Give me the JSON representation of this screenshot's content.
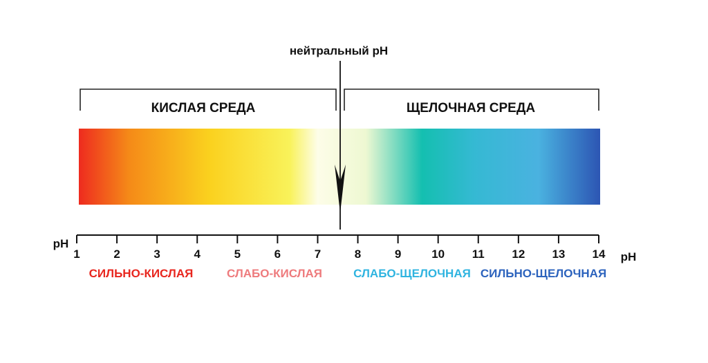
{
  "neutral_label": "нейтральный pH",
  "acid_label": "КИСЛАЯ СРЕДА",
  "alkaline_label": "ЩЕЛОЧНАЯ СРЕДА",
  "axis": {
    "label_left": "pH",
    "label_right": "pH",
    "min": 1,
    "max": 14,
    "ticks": [
      "1",
      "2",
      "3",
      "4",
      "5",
      "6",
      "7",
      "8",
      "9",
      "10",
      "11",
      "12",
      "13",
      "14"
    ],
    "neutral_value": 7
  },
  "zones": [
    {
      "label": "СИЛЬНО-КИСЛАЯ",
      "color": "#e8261e"
    },
    {
      "label": "СЛАБО-КИСЛАЯ",
      "color": "#ee7b7d"
    },
    {
      "label": "СЛАБО-ЩЕЛОЧНАЯ",
      "color": "#2fb4e0"
    },
    {
      "label": "СИЛЬНО-ЩЕЛОЧНАЯ",
      "color": "#2c63bd"
    }
  ],
  "gradient_stops": [
    {
      "ph": 1,
      "color": "#ee2b1f"
    },
    {
      "ph": 2.3,
      "color": "#f58a18"
    },
    {
      "ph": 4.3,
      "color": "#fad11e"
    },
    {
      "ph": 6.3,
      "color": "#f9f25a"
    },
    {
      "ph": 7,
      "color": "#fdfde8"
    },
    {
      "ph": 8.2,
      "color": "#eef8d2"
    },
    {
      "ph": 9.6,
      "color": "#14bfb0"
    },
    {
      "ph": 10.9,
      "color": "#35b9d3"
    },
    {
      "ph": 12.5,
      "color": "#4ab2e0"
    },
    {
      "ph": 14,
      "color": "#2d57b4"
    }
  ]
}
